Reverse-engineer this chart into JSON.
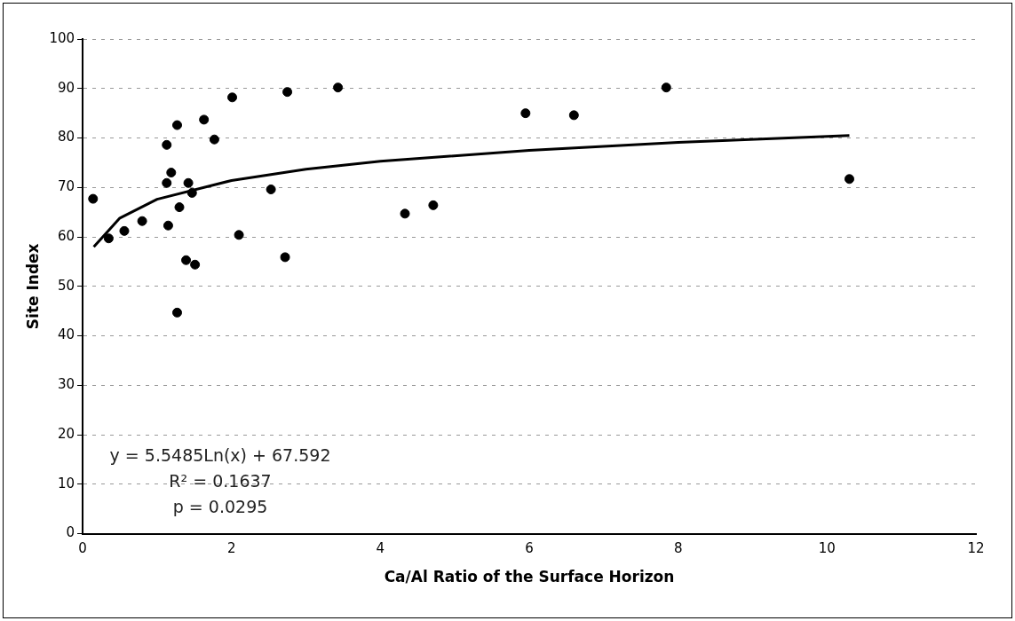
{
  "chart_data": {
    "type": "scatter",
    "xlabel": "Ca/Al Ratio of the Surface Horizon",
    "ylabel": "Site Index",
    "xlim": [
      0,
      12
    ],
    "xticks": [
      0,
      2,
      4,
      6,
      8,
      10,
      12
    ],
    "ylim": [
      0,
      100
    ],
    "yticks": [
      0,
      10,
      20,
      30,
      40,
      50,
      60,
      70,
      80,
      90,
      100
    ],
    "grid": "y",
    "legend": false,
    "marker": "circle",
    "annotations": [
      "y = 5.5485Ln(x) + 67.592",
      "R² = 0.1637",
      "p = 0.0295"
    ],
    "series": [
      {
        "color": "#000000",
        "x": [
          0.14,
          0.35,
          0.56,
          0.8,
          1.13,
          1.27,
          1.19,
          1.13,
          1.15,
          1.3,
          1.42,
          1.47,
          1.39,
          1.51,
          1.27,
          1.63,
          1.77,
          2.01,
          2.1,
          2.53,
          2.72,
          2.75,
          3.43,
          4.33,
          4.71,
          5.95,
          6.6,
          7.84,
          10.3
        ],
        "values": [
          67.7,
          59.7,
          61.2,
          63.2,
          78.6,
          82.6,
          73,
          70.9,
          62.3,
          66,
          70.9,
          68.9,
          55.3,
          54.4,
          44.7,
          83.7,
          79.7,
          88.2,
          60.4,
          69.6,
          55.9,
          89.3,
          90.2,
          64.7,
          66.4,
          85,
          84.6,
          90.2,
          71.7
        ]
      },
      {
        "type": "line",
        "color": "#000000",
        "line_style": "solid",
        "marker": "none",
        "x": [
          0.15,
          0.5,
          1,
          2,
          3,
          4,
          6,
          8,
          10.3
        ],
        "values": [
          58,
          63.8,
          67.6,
          71.4,
          73.7,
          75.3,
          77.5,
          79.1,
          80.5
        ]
      }
    ]
  }
}
